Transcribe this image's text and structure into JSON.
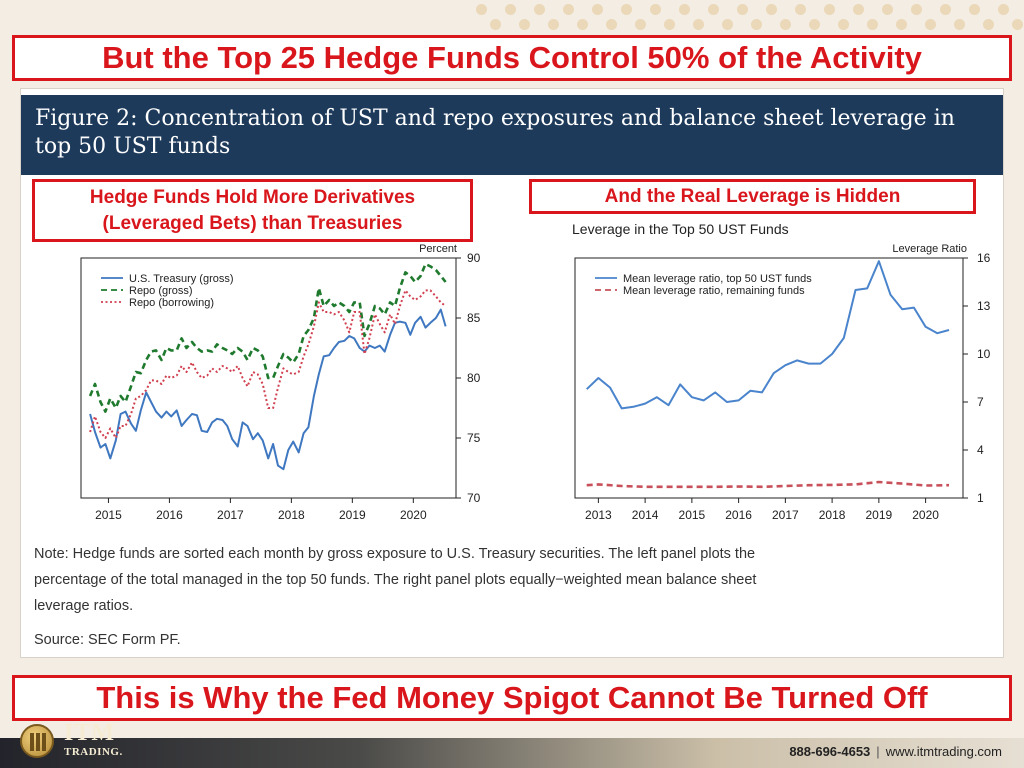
{
  "header": {
    "top_banner": "But the Top 25 Hedge Funds Control 50% of the Activity",
    "bottom_banner": "This is Why the Fed Money Spigot Cannot Be Turned Off"
  },
  "figure": {
    "title_line1": "Figure 2: Concentration of UST and repo exposures and balance sheet leverage in",
    "title_line2": "top 50 UST funds",
    "callout_left_line1": "Hedge Funds Hold More Derivatives",
    "callout_left_line2": "(Leveraged Bets) than Treasuries",
    "callout_right": "And the Real Leverage is Hidden",
    "note_line1": "Note: Hedge funds are sorted each month by gross exposure to U.S. Treasury securities. The left panel plots the",
    "note_line2": "percentage of the total managed in the top 50 funds. The right panel plots equally−weighted mean balance sheet",
    "note_line3": "leverage ratios.",
    "source": "Source: SEC Form PF."
  },
  "footer": {
    "brand_name": "ITM",
    "brand_sub": "TRADING.",
    "phone": "888-696-4653",
    "website": "www.itmtrading.com"
  },
  "colors": {
    "accent_red": "#d9161c",
    "navy": "#1d3a5b",
    "treasury_blue": "#3f78c0",
    "repo_green": "#1f7a2e",
    "repo_borrow_red": "#d04050",
    "leverage_blue": "#4a84cc",
    "leverage_red": "#c8505a"
  },
  "chart_data": [
    {
      "type": "line",
      "title": "",
      "ylabel": "Percent",
      "xlabel": "",
      "x_range": [
        2014.55,
        2020.7
      ],
      "ylim": [
        70,
        90
      ],
      "x_ticks": [
        2015,
        2016,
        2017,
        2018,
        2019,
        2020
      ],
      "y_ticks": [
        70,
        75,
        80,
        85,
        90
      ],
      "legend_position": "top-left",
      "series": [
        {
          "name": "U.S. Treasury (gross)",
          "style": "solid",
          "color": "#3f78c0",
          "x": [
            2014.7,
            2014.78,
            2014.87,
            2014.95,
            2015.03,
            2015.12,
            2015.2,
            2015.28,
            2015.37,
            2015.45,
            2015.53,
            2015.62,
            2015.7,
            2015.78,
            2015.87,
            2015.95,
            2016.03,
            2016.12,
            2016.2,
            2016.28,
            2016.37,
            2016.45,
            2016.53,
            2016.62,
            2016.7,
            2016.78,
            2016.87,
            2016.95,
            2017.03,
            2017.12,
            2017.2,
            2017.28,
            2017.37,
            2017.45,
            2017.53,
            2017.62,
            2017.7,
            2017.78,
            2017.87,
            2017.95,
            2018.03,
            2018.12,
            2018.2,
            2018.28,
            2018.37,
            2018.45,
            2018.53,
            2018.62,
            2018.7,
            2018.78,
            2018.87,
            2018.95,
            2019.03,
            2019.12,
            2019.2,
            2019.28,
            2019.37,
            2019.45,
            2019.53,
            2019.62,
            2019.7,
            2019.78,
            2019.87,
            2019.95,
            2020.03,
            2020.12,
            2020.2,
            2020.28,
            2020.37,
            2020.45,
            2020.53
          ],
          "y": [
            77,
            75.5,
            74.2,
            74.5,
            73.3,
            74.8,
            77,
            77.2,
            76.2,
            75.6,
            77.3,
            78.8,
            78,
            77.2,
            76.7,
            77.2,
            76.8,
            77.3,
            76,
            76.5,
            77,
            76.9,
            75.6,
            75.5,
            76.3,
            76.6,
            76.5,
            76,
            74.9,
            74.3,
            76.3,
            76,
            74.9,
            75.4,
            74.8,
            73.3,
            74.5,
            72.7,
            72.4,
            74,
            74.7,
            73.8,
            75.4,
            75.9,
            78.5,
            80.3,
            81.8,
            81.9,
            82.5,
            83,
            83.1,
            83.5,
            83.3,
            82.5,
            82.2,
            82.7,
            82.5,
            82.7,
            82.2,
            83.6,
            84.6,
            84.7,
            84.6,
            83.6,
            84.6,
            85.1,
            84.2,
            84.6,
            85,
            85.7,
            84.3
          ]
        },
        {
          "name": "Repo (gross)",
          "style": "dashed",
          "color": "#1f7a2e",
          "x": [
            2014.7,
            2014.78,
            2014.87,
            2014.95,
            2015.03,
            2015.12,
            2015.2,
            2015.28,
            2015.37,
            2015.45,
            2015.53,
            2015.62,
            2015.7,
            2015.78,
            2015.87,
            2015.95,
            2016.03,
            2016.12,
            2016.2,
            2016.28,
            2016.37,
            2016.45,
            2016.53,
            2016.62,
            2016.7,
            2016.78,
            2016.87,
            2016.95,
            2017.03,
            2017.12,
            2017.2,
            2017.28,
            2017.37,
            2017.45,
            2017.53,
            2017.62,
            2017.7,
            2017.78,
            2017.87,
            2017.95,
            2018.03,
            2018.12,
            2018.2,
            2018.28,
            2018.37,
            2018.45,
            2018.53,
            2018.62,
            2018.7,
            2018.78,
            2018.87,
            2018.95,
            2019.03,
            2019.12,
            2019.2,
            2019.28,
            2019.37,
            2019.45,
            2019.53,
            2019.62,
            2019.7,
            2019.78,
            2019.87,
            2019.95,
            2020.03,
            2020.12,
            2020.2,
            2020.28,
            2020.37,
            2020.45,
            2020.53
          ],
          "y": [
            78.5,
            79.5,
            78,
            77.2,
            78.3,
            77.5,
            78.5,
            78,
            79.3,
            80.5,
            80.4,
            81.5,
            82.2,
            82.3,
            81.5,
            82.5,
            82.3,
            82.3,
            83.3,
            82.5,
            83,
            82.5,
            82.2,
            82.3,
            82.2,
            82.8,
            82.5,
            82.3,
            82,
            82.5,
            82.2,
            81.5,
            82.5,
            82.3,
            81.8,
            80,
            80,
            81,
            82,
            81.7,
            81.3,
            82,
            83.5,
            84,
            85,
            87.5,
            86,
            86.5,
            86,
            86.3,
            86,
            85.5,
            86.3,
            86.3,
            83.5,
            84.5,
            86,
            85.8,
            85.3,
            86.3,
            86,
            87.5,
            88.8,
            88.5,
            88,
            88.5,
            89.5,
            89.3,
            89,
            88.5,
            88
          ]
        },
        {
          "name": "Repo (borrowing)",
          "style": "dotted",
          "color": "#d04050",
          "x": [
            2014.7,
            2014.78,
            2014.87,
            2014.95,
            2015.03,
            2015.12,
            2015.2,
            2015.28,
            2015.37,
            2015.45,
            2015.53,
            2015.62,
            2015.7,
            2015.78,
            2015.87,
            2015.95,
            2016.03,
            2016.12,
            2016.2,
            2016.28,
            2016.37,
            2016.45,
            2016.53,
            2016.62,
            2016.7,
            2016.78,
            2016.87,
            2016.95,
            2017.03,
            2017.12,
            2017.2,
            2017.28,
            2017.37,
            2017.45,
            2017.53,
            2017.62,
            2017.7,
            2017.78,
            2017.87,
            2017.95,
            2018.03,
            2018.12,
            2018.2,
            2018.28,
            2018.37,
            2018.45,
            2018.53,
            2018.62,
            2018.7,
            2018.78,
            2018.87,
            2018.95,
            2019.03,
            2019.12,
            2019.2,
            2019.28,
            2019.37,
            2019.45,
            2019.53,
            2019.62,
            2019.7,
            2019.78,
            2019.87,
            2019.95,
            2020.03,
            2020.12,
            2020.2,
            2020.28,
            2020.37,
            2020.45,
            2020.53
          ],
          "y": [
            75.5,
            76.8,
            75.5,
            75,
            75.8,
            75,
            76,
            76,
            77,
            78.3,
            78.5,
            79,
            79.8,
            79.8,
            79.5,
            80.2,
            80,
            80.2,
            81,
            80.5,
            81.3,
            80.5,
            80,
            80.2,
            80.8,
            80.5,
            81,
            80.8,
            80.5,
            81,
            80,
            79.3,
            80.5,
            80.3,
            79.5,
            77.5,
            77.5,
            79.2,
            80.8,
            80.5,
            80.3,
            80.5,
            81.8,
            82.8,
            84.3,
            86.3,
            85.5,
            85.5,
            85.3,
            85.5,
            84.8,
            83.8,
            85.5,
            85.5,
            82,
            83.3,
            85.3,
            84.5,
            83.8,
            85.3,
            84.5,
            86,
            87.3,
            86.8,
            86.5,
            86.8,
            87.3,
            87.3,
            86.8,
            86.3,
            86
          ]
        }
      ]
    },
    {
      "type": "line",
      "title": "Leverage in the Top 50 UST Funds",
      "ylabel": "Leverage Ratio",
      "xlabel": "",
      "x_range": [
        2012.5,
        2020.8
      ],
      "ylim": [
        1,
        16
      ],
      "x_ticks": [
        2013,
        2014,
        2015,
        2016,
        2017,
        2018,
        2019,
        2020
      ],
      "y_ticks": [
        1,
        4,
        7,
        10,
        13,
        16
      ],
      "legend_position": "top-left",
      "series": [
        {
          "name": "Mean leverage ratio, top 50 UST funds",
          "style": "solid",
          "color": "#4a84cc",
          "x": [
            2012.75,
            2013,
            2013.25,
            2013.5,
            2013.75,
            2014,
            2014.25,
            2014.5,
            2014.75,
            2015,
            2015.25,
            2015.5,
            2015.75,
            2016,
            2016.25,
            2016.5,
            2016.75,
            2017,
            2017.25,
            2017.5,
            2017.75,
            2018,
            2018.25,
            2018.5,
            2018.75,
            2019,
            2019.25,
            2019.5,
            2019.75,
            2020,
            2020.25,
            2020.5
          ],
          "y": [
            7.8,
            8.5,
            7.9,
            6.6,
            6.7,
            6.9,
            7.3,
            6.8,
            8.1,
            7.3,
            7.1,
            7.6,
            7.0,
            7.1,
            7.7,
            7.6,
            8.8,
            9.3,
            9.6,
            9.4,
            9.4,
            10,
            11,
            14,
            14.1,
            15.8,
            13.7,
            12.8,
            12.9,
            11.7,
            11.3,
            11.5
          ]
        },
        {
          "name": "Mean leverage ratio, remaining funds",
          "style": "dashed",
          "color": "#c8505a",
          "x": [
            2012.75,
            2013,
            2013.5,
            2014,
            2014.5,
            2015,
            2015.5,
            2016,
            2016.5,
            2017,
            2017.5,
            2018,
            2018.5,
            2019,
            2019.5,
            2020,
            2020.5
          ],
          "y": [
            1.8,
            1.85,
            1.75,
            1.7,
            1.7,
            1.7,
            1.7,
            1.72,
            1.7,
            1.75,
            1.8,
            1.82,
            1.85,
            2,
            1.9,
            1.78,
            1.8
          ]
        }
      ]
    }
  ]
}
